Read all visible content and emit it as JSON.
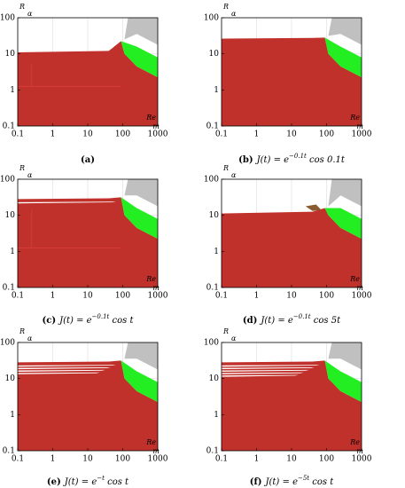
{
  "axes": {
    "xlabel": "Re",
    "xlabel_sub": "m",
    "ylabel": "R",
    "ylabel_sub": "α",
    "xlim": [
      0.1,
      1000
    ],
    "ylim": [
      0.1,
      100
    ],
    "xticks": [
      0.1,
      1,
      10,
      100,
      1000
    ],
    "yticks": [
      0.1,
      1,
      10,
      100
    ],
    "log": true,
    "grid": true
  },
  "panels": [
    {
      "tag": "(a)",
      "formula": []
    },
    {
      "tag": "(b)",
      "formula": [
        "J(t) = e",
        "−0.1t",
        " cos 0.1t"
      ]
    },
    {
      "tag": "(c)",
      "formula": [
        "J(t) = e",
        "−0.1t",
        " cos t"
      ]
    },
    {
      "tag": "(d)",
      "formula": [
        "J(t) = e",
        "−0.1t",
        " cos 5t"
      ]
    },
    {
      "tag": "(e)",
      "formula": [
        "J(t) = e",
        "−t",
        " cos t"
      ]
    },
    {
      "tag": "(f)",
      "formula": [
        "J(t) = e",
        "−5t",
        " cos t"
      ]
    }
  ]
}
